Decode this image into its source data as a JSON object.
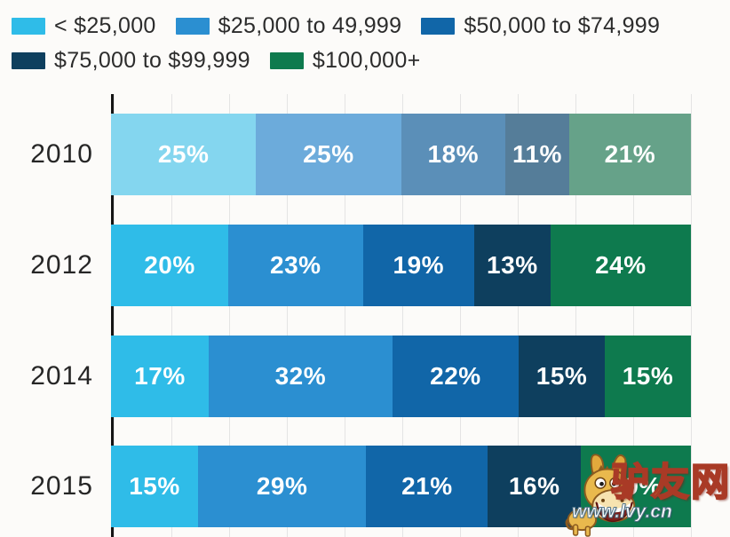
{
  "chart_data": {
    "type": "bar",
    "orientation": "horizontal",
    "stacked": true,
    "title": "",
    "xlabel": "",
    "ylabel": "",
    "xlim": [
      0,
      100
    ],
    "value_suffix": "%",
    "legend_position": "top",
    "categories": [
      "2010",
      "2012",
      "2014",
      "2015"
    ],
    "muted_category": "2010",
    "series": [
      {
        "name": "< $25,000",
        "color": "#2fbce8",
        "muted_color": "#84d6ef",
        "values": [
          25,
          20,
          17,
          15
        ]
      },
      {
        "name": "$25,000 to 49,999",
        "color": "#2b8fd1",
        "muted_color": "#6cabdb",
        "values": [
          25,
          23,
          32,
          29
        ]
      },
      {
        "name": "$50,000 to $74,999",
        "color": "#1166a8",
        "muted_color": "#5b8fb8",
        "values": [
          18,
          19,
          22,
          21
        ]
      },
      {
        "name": "$75,000 to $99,999",
        "color": "#0e3f5e",
        "muted_color": "#557d99",
        "values": [
          11,
          13,
          15,
          16
        ]
      },
      {
        "name": "$100,000+",
        "color": "#0e7a4e",
        "muted_color": "#66a289",
        "values": [
          21,
          24,
          15,
          19
        ]
      }
    ],
    "gridlines": {
      "interval_percent": 10,
      "color": "#e4e4e4",
      "axis_color": "#151515"
    }
  },
  "watermark": {
    "site_name": "驴友网",
    "site_url": "www.lvy.cn",
    "mascot": "donkey-cartoon",
    "name_color": "#f4c83e",
    "url_color": "#ffffff"
  },
  "colors": {
    "background": "#fcfbf9",
    "year_label": "#262626",
    "bar_value_label": "#ffffff",
    "legend_text": "#2c2c2c"
  }
}
